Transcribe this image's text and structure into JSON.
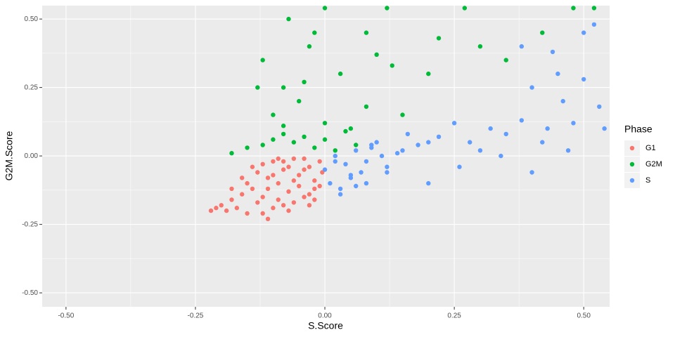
{
  "chart_data": {
    "type": "scatter",
    "x_label": "S.Score",
    "y_label": "G2M.Score",
    "xlim": [
      -0.546,
      0.55
    ],
    "ylim": [
      -0.551,
      0.549
    ],
    "xticks": [
      {
        "value": -0.5,
        "label": "-0.50"
      },
      {
        "value": -0.25,
        "label": "-0.25"
      },
      {
        "value": 0,
        "label": "0.00"
      },
      {
        "value": 0.25,
        "label": "0.25"
      },
      {
        "value": 0.5,
        "label": "0.50"
      }
    ],
    "yticks": [
      {
        "value": -0.5,
        "label": "-0.50"
      },
      {
        "value": -0.25,
        "label": "-0.25"
      },
      {
        "value": 0,
        "label": "0.00"
      },
      {
        "value": 0.25,
        "label": "0.25"
      },
      {
        "value": 0.5,
        "label": "0.50"
      }
    ],
    "xminorticks": [
      -0.375,
      -0.125,
      0.125,
      0.375
    ],
    "yminorticks": [
      -0.375,
      -0.125,
      0.125,
      0.375
    ],
    "grid": true,
    "legend_title": "Phase",
    "series": [
      {
        "name": "G1",
        "color": "#F8766D",
        "x": [
          -0.22,
          -0.21,
          -0.2,
          -0.19,
          -0.18,
          -0.17,
          -0.16,
          -0.15,
          -0.14,
          -0.13,
          -0.12,
          -0.11,
          -0.1,
          -0.09,
          -0.08,
          -0.07,
          -0.06,
          -0.05,
          -0.04,
          -0.03,
          -0.02,
          -0.01,
          -0.005,
          -0.15,
          -0.12,
          -0.1,
          -0.08,
          -0.06,
          -0.04,
          -0.02,
          -0.13,
          -0.11,
          -0.09,
          -0.07,
          -0.05,
          -0.03,
          -0.01,
          -0.14,
          -0.1,
          -0.06,
          -0.02,
          -0.18,
          -0.16,
          -0.12,
          -0.08,
          -0.04,
          -0.11,
          -0.07,
          -0.03,
          -0.09
        ],
        "values": [
          -0.2,
          -0.19,
          -0.18,
          -0.2,
          -0.16,
          -0.19,
          -0.14,
          -0.21,
          -0.12,
          -0.17,
          -0.03,
          -0.08,
          -0.02,
          -0.1,
          -0.05,
          -0.13,
          -0.01,
          -0.07,
          -0.15,
          -0.04,
          -0.09,
          -0.11,
          -0.06,
          -0.1,
          -0.15,
          -0.19,
          -0.02,
          -0.17,
          -0.01,
          -0.16,
          -0.06,
          -0.12,
          -0.16,
          -0.04,
          -0.11,
          -0.14,
          -0.02,
          -0.04,
          -0.07,
          -0.09,
          -0.12,
          -0.12,
          -0.08,
          -0.21,
          -0.18,
          -0.05,
          -0.23,
          -0.2,
          -0.18,
          -0.01
        ]
      },
      {
        "name": "G2M",
        "color": "#00BA38",
        "x": [
          -0.18,
          -0.15,
          -0.12,
          -0.1,
          -0.08,
          -0.06,
          -0.04,
          -0.02,
          0,
          0.02,
          0.04,
          0.06,
          -0.1,
          -0.05,
          0,
          0.05,
          -0.12,
          -0.08,
          -0.03,
          0.03,
          0.08,
          -0.13,
          -0.07,
          -0.02,
          0.1,
          0.15,
          0.12,
          0.2,
          0.22,
          -0.04,
          -0.08,
          0,
          0.08,
          0.13,
          0.3,
          0.35,
          0.42,
          0.48,
          0.52,
          0.27
        ],
        "values": [
          0.01,
          0.03,
          0.04,
          0.06,
          0.08,
          0.05,
          0.07,
          0.03,
          0.06,
          0.02,
          0.09,
          0.04,
          0.15,
          0.2,
          0.12,
          0.1,
          0.35,
          0.25,
          0.4,
          0.3,
          0.18,
          0.25,
          0.5,
          0.45,
          0.37,
          0.15,
          0.54,
          0.3,
          0.43,
          0.27,
          0.11,
          0.54,
          0.45,
          0.33,
          0.4,
          0.35,
          0.45,
          0.54,
          0.54,
          0.54
        ]
      },
      {
        "name": "S",
        "color": "#619CFF",
        "x": [
          0,
          0.01,
          0.02,
          0.03,
          0.04,
          0.05,
          0.06,
          0.07,
          0.08,
          0.09,
          0.1,
          0.12,
          0.14,
          0.16,
          0.18,
          0.2,
          0.22,
          0.25,
          0.28,
          0.3,
          0.32,
          0.35,
          0.38,
          0.4,
          0.42,
          0.44,
          0.46,
          0.48,
          0.5,
          0.52,
          0.54,
          0.03,
          0.06,
          0.09,
          0.12,
          0.15,
          0.2,
          0.26,
          0.34,
          0.4,
          0.45,
          0.5,
          0.53,
          0.47,
          0.43,
          0.38,
          0.02,
          0.05,
          0.08,
          0.11
        ],
        "values": [
          -0.05,
          -0.1,
          0,
          -0.12,
          -0.03,
          -0.08,
          0.02,
          -0.06,
          -0.02,
          0.03,
          0.05,
          -0.04,
          0.01,
          0.08,
          0.04,
          -0.1,
          0.07,
          0.12,
          0.05,
          0.02,
          0.1,
          0.08,
          0.13,
          0.25,
          0.05,
          0.38,
          0.2,
          0.12,
          0.28,
          0.48,
          0.1,
          -0.14,
          -0.11,
          0.04,
          -0.06,
          0.02,
          0.05,
          -0.04,
          0,
          -0.06,
          0.3,
          0.45,
          0.18,
          0.02,
          0.1,
          0.4,
          -0.02,
          -0.07,
          -0.1,
          0
        ]
      }
    ]
  }
}
